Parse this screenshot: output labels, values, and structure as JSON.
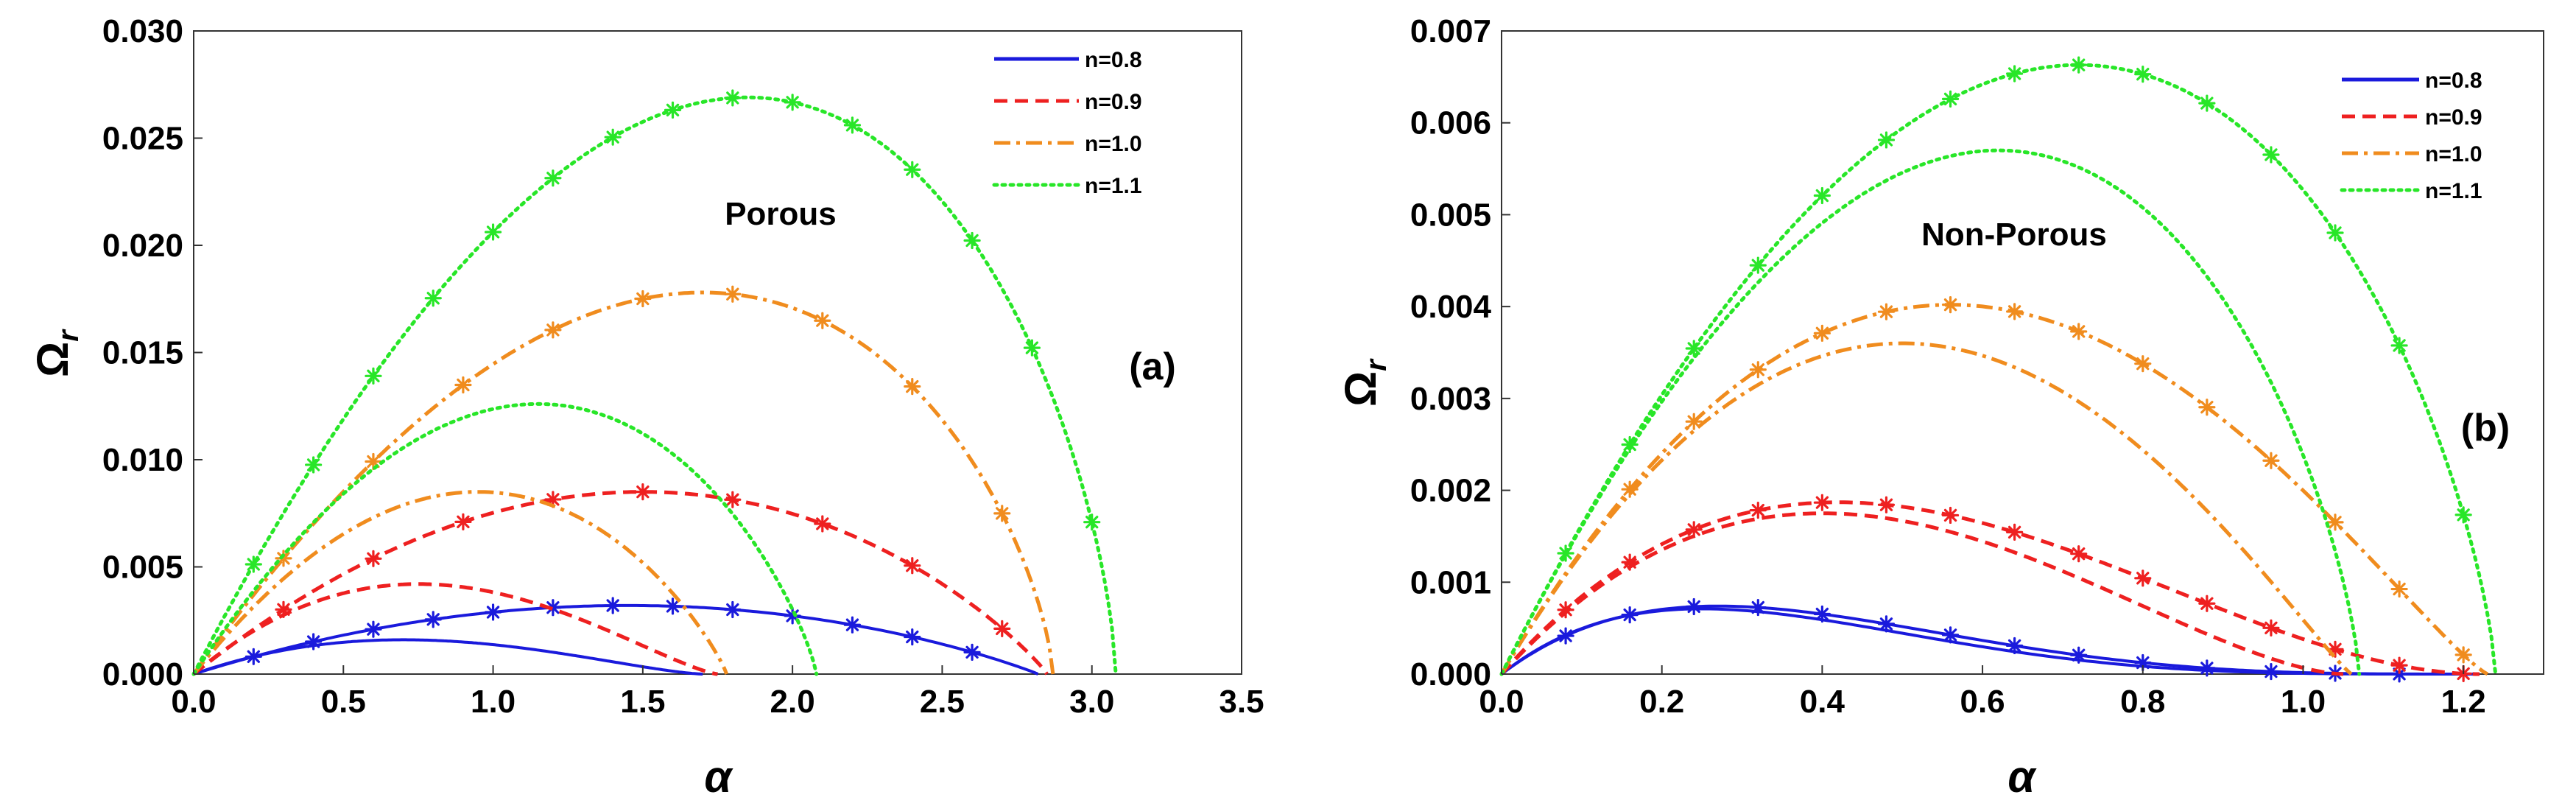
{
  "chart_data": [
    {
      "type": "line",
      "panel_label": "(a)",
      "annotation": "Porous",
      "xlabel": "α",
      "ylabel_main": "Ω",
      "ylabel_sub": "r",
      "xlim": [
        0,
        3.5
      ],
      "ylim": [
        0,
        0.03
      ],
      "xticks": [
        "0.0",
        "0.5",
        "1.0",
        "1.5",
        "2.0",
        "2.5",
        "3.0",
        "3.5"
      ],
      "xtick_values": [
        0,
        0.5,
        1.0,
        1.5,
        2.0,
        2.5,
        3.0,
        3.5
      ],
      "yticks": [
        "0.000",
        "0.005",
        "0.010",
        "0.015",
        "0.020",
        "0.025",
        "0.030"
      ],
      "ytick_values": [
        0,
        0.005,
        0.01,
        0.015,
        0.02,
        0.025,
        0.03
      ],
      "legend_position": "top-right",
      "series": [
        {
          "name": "n=0.8",
          "color": "#1a1adc",
          "style": "solid",
          "peak_x": 0.7,
          "peak_y": 0.0016,
          "root": 1.7,
          "markers": false
        },
        {
          "name": "n=0.8",
          "color": "#1a1adc",
          "style": "solid",
          "peak_x": 1.45,
          "peak_y": 0.0032,
          "root": 2.82,
          "markers": true,
          "marker_x": [
            0.2,
            0.4,
            0.6,
            0.8,
            1.0,
            1.2,
            1.4,
            1.6,
            1.8,
            2.0,
            2.2,
            2.4,
            2.6
          ]
        },
        {
          "name": "n=0.9",
          "color": "#ee2020",
          "style": "dashed",
          "peak_x": 0.75,
          "peak_y": 0.0042,
          "root": 1.75,
          "markers": false
        },
        {
          "name": "n=0.9",
          "color": "#ee2020",
          "style": "dashed",
          "peak_x": 1.5,
          "peak_y": 0.0085,
          "root": 2.85,
          "markers": true,
          "marker_x": [
            0.3,
            0.6,
            0.9,
            1.2,
            1.5,
            1.8,
            2.1,
            2.4,
            2.7
          ]
        },
        {
          "name": "n=1.0",
          "color": "#f08c1e",
          "style": "dashdot",
          "peak_x": 0.95,
          "peak_y": 0.0085,
          "root": 1.78,
          "markers": false
        },
        {
          "name": "n=1.0",
          "color": "#f08c1e",
          "style": "dashdot",
          "peak_x": 1.7,
          "peak_y": 0.0178,
          "root": 2.87,
          "markers": true,
          "marker_x": [
            0.3,
            0.6,
            0.9,
            1.2,
            1.5,
            1.8,
            2.1,
            2.4,
            2.7
          ]
        },
        {
          "name": "n=1.1",
          "color": "#28e628",
          "style": "dotted",
          "peak_x": 1.15,
          "peak_y": 0.0126,
          "root": 2.08,
          "markers": false
        },
        {
          "name": "n=1.1",
          "color": "#28e628",
          "style": "dotted",
          "peak_x": 1.85,
          "peak_y": 0.0269,
          "root": 3.08,
          "markers": true,
          "marker_x": [
            0.2,
            0.4,
            0.6,
            0.8,
            1.0,
            1.2,
            1.4,
            1.6,
            1.8,
            2.0,
            2.2,
            2.4,
            2.6,
            2.8,
            3.0
          ]
        }
      ],
      "legend": [
        {
          "label": "n=0.8",
          "color": "#1a1adc",
          "style": "solid"
        },
        {
          "label": "n=0.9",
          "color": "#ee2020",
          "style": "dashed"
        },
        {
          "label": "n=1.0",
          "color": "#f08c1e",
          "style": "dashdot"
        },
        {
          "label": "n=1.1",
          "color": "#28e628",
          "style": "dotted"
        }
      ]
    },
    {
      "type": "line",
      "panel_label": "(b)",
      "annotation": "Non-Porous",
      "xlabel": "α",
      "ylabel_main": "Ω",
      "ylabel_sub": "r",
      "xlim": [
        0,
        1.3
      ],
      "ylim": [
        0,
        0.007
      ],
      "xticks": [
        "0.0",
        "0.2",
        "0.4",
        "0.6",
        "0.8",
        "1.0",
        "1.2"
      ],
      "xtick_values": [
        0,
        0.2,
        0.4,
        0.6,
        0.8,
        1.0,
        1.2
      ],
      "yticks": [
        "0.000",
        "0.001",
        "0.002",
        "0.003",
        "0.004",
        "0.005",
        "0.006",
        "0.007"
      ],
      "ytick_values": [
        0,
        0.001,
        0.002,
        0.003,
        0.004,
        0.005,
        0.006,
        0.007
      ],
      "legend_position": "top-right",
      "series": [
        {
          "name": "n=0.8",
          "color": "#1a1adc",
          "style": "solid",
          "peak_x": 0.25,
          "peak_y": 0.00071,
          "root": 1.2,
          "markers": false
        },
        {
          "name": "n=0.8",
          "color": "#1a1adc",
          "style": "solid",
          "peak_x": 0.27,
          "peak_y": 0.00074,
          "root": 1.22,
          "markers": true,
          "marker_x": [
            0.08,
            0.16,
            0.24,
            0.32,
            0.4,
            0.48,
            0.56,
            0.64,
            0.72,
            0.8,
            0.88,
            0.96,
            1.04,
            1.12
          ]
        },
        {
          "name": "n=0.9",
          "color": "#ee2020",
          "style": "dashed",
          "peak_x": 0.4,
          "peak_y": 0.00175,
          "root": 1.05,
          "markers": false
        },
        {
          "name": "n=0.9",
          "color": "#ee2020",
          "style": "dashed",
          "peak_x": 0.42,
          "peak_y": 0.00187,
          "root": 1.22,
          "markers": true,
          "marker_x": [
            0.08,
            0.16,
            0.24,
            0.32,
            0.4,
            0.48,
            0.56,
            0.64,
            0.72,
            0.8,
            0.88,
            0.96,
            1.04,
            1.12,
            1.2
          ]
        },
        {
          "name": "n=1.0",
          "color": "#f08c1e",
          "style": "dashdot",
          "peak_x": 0.5,
          "peak_y": 0.0036,
          "root": 1.06,
          "markers": false
        },
        {
          "name": "n=1.0",
          "color": "#f08c1e",
          "style": "dashdot",
          "peak_x": 0.56,
          "peak_y": 0.00402,
          "root": 1.23,
          "markers": true,
          "marker_x": [
            0.16,
            0.24,
            0.32,
            0.4,
            0.48,
            0.56,
            0.64,
            0.72,
            0.8,
            0.88,
            0.96,
            1.04,
            1.12,
            1.2
          ]
        },
        {
          "name": "n=1.1",
          "color": "#28e628",
          "style": "dotted",
          "peak_x": 0.62,
          "peak_y": 0.0057,
          "root": 1.07,
          "markers": false
        },
        {
          "name": "n=1.1",
          "color": "#28e628",
          "style": "dotted",
          "peak_x": 0.72,
          "peak_y": 0.00663,
          "root": 1.24,
          "markers": true,
          "marker_x": [
            0.08,
            0.16,
            0.24,
            0.32,
            0.4,
            0.48,
            0.56,
            0.64,
            0.72,
            0.8,
            0.88,
            0.96,
            1.04,
            1.12,
            1.2
          ]
        }
      ],
      "legend": [
        {
          "label": "n=0.8",
          "color": "#1a1adc",
          "style": "solid"
        },
        {
          "label": "n=0.9",
          "color": "#ee2020",
          "style": "dashed"
        },
        {
          "label": "n=1.0",
          "color": "#f08c1e",
          "style": "dashdot"
        },
        {
          "label": "n=1.1",
          "color": "#28e628",
          "style": "dotted"
        }
      ]
    }
  ]
}
